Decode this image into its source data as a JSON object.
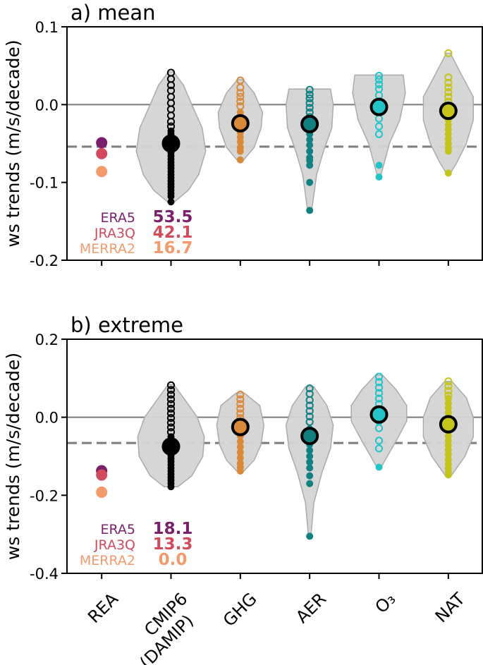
{
  "ylabel": "ws trends (m/s/decade)",
  "x_labels": [
    {
      "key": "REA",
      "lines": [
        "REA"
      ]
    },
    {
      "key": "CMIP6",
      "lines": [
        "CMIP6",
        "(DAMIP)"
      ]
    },
    {
      "key": "GHG",
      "lines": [
        "GHG"
      ]
    },
    {
      "key": "AER",
      "lines": [
        "AER"
      ]
    },
    {
      "key": "O3",
      "lines": [
        "O₃"
      ]
    },
    {
      "key": "NAT",
      "lines": [
        "NAT"
      ]
    }
  ],
  "colors": {
    "REA": "#7a1f6a",
    "CMIP6": "#000000",
    "GHG": "#d8893a",
    "AER": "#118080",
    "O3": "#22c4c8",
    "NAT": "#c4c41a",
    "ERA5": "#7a1f6a",
    "JRA3Q": "#d14b5d",
    "MERRA2": "#f39b6d",
    "violin": "#d4d4d4",
    "violin_edge": "#aaaaaa",
    "refline": "#808080"
  },
  "chart_data": [
    {
      "type": "violin",
      "title": "a) mean",
      "ylabel": "ws trends (m/s/decade)",
      "ylim": [
        -0.2,
        0.1
      ],
      "yticks": [
        0.1,
        0.0,
        -0.1,
        -0.2
      ],
      "ytick_labels": [
        "0.1",
        "0.0",
        "-0.1",
        "-0.2"
      ],
      "zero_line": 0.0,
      "dashed_line": -0.054,
      "reanalyses": [
        {
          "name": "ERA5",
          "value": -0.049,
          "pct": "53.5"
        },
        {
          "name": "JRA3Q",
          "value": -0.063,
          "pct": "42.1"
        },
        {
          "name": "MERRA2",
          "value": -0.086,
          "pct": "16.7"
        }
      ],
      "groups": [
        {
          "key": "CMIP6",
          "mean": -0.05,
          "violin": [
            [
              0.042,
              0.004
            ],
            [
              0.025,
              0.018
            ],
            [
              0.0,
              0.03
            ],
            [
              -0.03,
              0.045
            ],
            [
              -0.06,
              0.05
            ],
            [
              -0.09,
              0.04
            ],
            [
              -0.11,
              0.025
            ],
            [
              -0.125,
              0.005
            ]
          ],
          "hollow": [
            0.041,
            0.033,
            0.025,
            0.018,
            0.01,
            0.002,
            -0.006,
            -0.014,
            -0.022,
            -0.028
          ],
          "filled": [
            -0.034,
            -0.038,
            -0.042,
            -0.046,
            -0.05,
            -0.054,
            -0.058,
            -0.062,
            -0.066,
            -0.07,
            -0.074,
            -0.078,
            -0.082,
            -0.086,
            -0.09,
            -0.094,
            -0.098,
            -0.102,
            -0.106,
            -0.11,
            -0.114,
            -0.118,
            -0.125
          ]
        },
        {
          "key": "GHG",
          "mean": -0.024,
          "violin": [
            [
              0.032,
              0.004
            ],
            [
              0.015,
              0.02
            ],
            [
              -0.01,
              0.032
            ],
            [
              -0.03,
              0.03
            ],
            [
              -0.055,
              0.02
            ],
            [
              -0.072,
              0.004
            ]
          ],
          "hollow": [
            0.031,
            0.022,
            0.015,
            0.01,
            0.004,
            -0.002
          ],
          "filled": [
            -0.01,
            -0.016,
            -0.022,
            -0.03,
            -0.036,
            -0.042,
            -0.048,
            -0.055,
            -0.06,
            -0.071
          ]
        },
        {
          "key": "AER",
          "mean": -0.025,
          "violin": [
            [
              0.02,
              0.03
            ],
            [
              0.0,
              0.034
            ],
            [
              -0.03,
              0.032
            ],
            [
              -0.06,
              0.02
            ],
            [
              -0.09,
              0.01
            ],
            [
              -0.136,
              0.003
            ]
          ],
          "hollow": [
            0.019,
            0.013,
            0.008,
            0.002,
            -0.004,
            -0.01,
            -0.016
          ],
          "filled": [
            -0.03,
            -0.038,
            -0.045,
            -0.052,
            -0.06,
            -0.068,
            -0.072,
            -0.078,
            -0.1,
            -0.136
          ]
        },
        {
          "key": "O3",
          "mean": -0.003,
          "violin": [
            [
              0.038,
              0.035
            ],
            [
              0.015,
              0.038
            ],
            [
              -0.02,
              0.03
            ],
            [
              -0.05,
              0.015
            ],
            [
              -0.08,
              0.006
            ],
            [
              -0.093,
              0.002
            ]
          ],
          "hollow": [
            0.037,
            0.032,
            0.026,
            0.02,
            0.012,
            0.004,
            -0.006,
            -0.018,
            -0.028,
            -0.038
          ],
          "filled": [
            -0.078,
            -0.093
          ]
        },
        {
          "key": "NAT",
          "mean": -0.008,
          "violin": [
            [
              0.066,
              0.003
            ],
            [
              0.04,
              0.018
            ],
            [
              0.01,
              0.036
            ],
            [
              -0.02,
              0.036
            ],
            [
              -0.05,
              0.026
            ],
            [
              -0.075,
              0.012
            ],
            [
              -0.088,
              0.003
            ]
          ],
          "hollow": [
            0.066,
            0.035,
            0.028,
            0.022,
            0.016,
            0.01,
            0.004,
            -0.002
          ],
          "filled": [
            -0.014,
            -0.02,
            -0.026,
            -0.032,
            -0.038,
            -0.044,
            -0.05,
            -0.056,
            -0.06,
            -0.088
          ]
        }
      ]
    },
    {
      "type": "violin",
      "title": "b) extreme",
      "ylabel": "ws trends (m/s/decade)",
      "ylim": [
        -0.4,
        0.2
      ],
      "yticks": [
        0.2,
        0.0,
        -0.2,
        -0.4
      ],
      "ytick_labels": [
        "0.2",
        "0.0",
        "-0.2",
        "-0.4"
      ],
      "zero_line": 0.0,
      "dashed_line": -0.066,
      "reanalyses": [
        {
          "name": "ERA5",
          "value": -0.137,
          "pct": "18.1"
        },
        {
          "name": "JRA3Q",
          "value": -0.148,
          "pct": "13.3"
        },
        {
          "name": "MERRA2",
          "value": -0.192,
          "pct": "0.0"
        }
      ],
      "groups": [
        {
          "key": "CMIP6",
          "mean": -0.075,
          "violin": [
            [
              0.084,
              0.004
            ],
            [
              0.04,
              0.022
            ],
            [
              0.0,
              0.038
            ],
            [
              -0.05,
              0.048
            ],
            [
              -0.1,
              0.046
            ],
            [
              -0.15,
              0.03
            ],
            [
              -0.178,
              0.01
            ]
          ],
          "hollow": [
            0.082,
            0.07,
            0.058,
            0.046,
            0.034,
            0.022,
            0.01,
            -0.002,
            -0.014,
            -0.026,
            -0.038
          ],
          "filled": [
            -0.05,
            -0.058,
            -0.066,
            -0.074,
            -0.082,
            -0.09,
            -0.098,
            -0.106,
            -0.114,
            -0.122,
            -0.13,
            -0.138,
            -0.146,
            -0.154,
            -0.162,
            -0.17,
            -0.178
          ]
        },
        {
          "key": "GHG",
          "mean": -0.025,
          "violin": [
            [
              0.062,
              0.006
            ],
            [
              0.03,
              0.028
            ],
            [
              -0.02,
              0.034
            ],
            [
              -0.07,
              0.03
            ],
            [
              -0.11,
              0.02
            ],
            [
              -0.14,
              0.004
            ]
          ],
          "hollow": [
            0.058,
            0.046,
            0.034,
            0.022,
            0.01,
            -0.002
          ],
          "filled": [
            -0.02,
            -0.034,
            -0.048,
            -0.062,
            -0.076,
            -0.09,
            -0.104,
            -0.118,
            -0.128,
            -0.138
          ]
        },
        {
          "key": "AER",
          "mean": -0.048,
          "violin": [
            [
              0.078,
              0.006
            ],
            [
              0.03,
              0.025
            ],
            [
              -0.02,
              0.034
            ],
            [
              -0.08,
              0.03
            ],
            [
              -0.14,
              0.018
            ],
            [
              -0.22,
              0.006
            ],
            [
              -0.3,
              0.002
            ]
          ],
          "hollow": [
            0.074,
            0.06,
            0.044,
            0.03,
            0.016,
            0.002,
            -0.012
          ],
          "filled": [
            -0.03,
            -0.05,
            -0.07,
            -0.085,
            -0.1,
            -0.115,
            -0.13,
            -0.15,
            -0.17,
            -0.305
          ]
        },
        {
          "key": "O3",
          "mean": 0.007,
          "violin": [
            [
              0.108,
              0.005
            ],
            [
              0.07,
              0.025
            ],
            [
              0.03,
              0.04
            ],
            [
              -0.01,
              0.04
            ],
            [
              -0.06,
              0.025
            ],
            [
              -0.1,
              0.012
            ],
            [
              -0.128,
              0.003
            ]
          ],
          "hollow": [
            0.104,
            0.09,
            0.076,
            0.062,
            0.048,
            0.034,
            0.02,
            0.006,
            -0.01,
            -0.028,
            -0.06,
            -0.08
          ],
          "filled": [
            -0.128
          ]
        },
        {
          "key": "NAT",
          "mean": -0.018,
          "violin": [
            [
              0.092,
              0.005
            ],
            [
              0.05,
              0.026
            ],
            [
              0.0,
              0.036
            ],
            [
              -0.05,
              0.036
            ],
            [
              -0.1,
              0.024
            ],
            [
              -0.15,
              0.004
            ]
          ],
          "hollow": [
            0.092,
            0.08,
            0.068,
            0.056
          ],
          "filled": [
            0.048,
            0.036,
            0.024,
            0.012,
            0.0,
            -0.012,
            -0.024,
            -0.036,
            -0.048,
            -0.06,
            -0.072,
            -0.084,
            -0.096,
            -0.108,
            -0.12,
            -0.13,
            -0.14,
            -0.148
          ]
        }
      ]
    }
  ]
}
